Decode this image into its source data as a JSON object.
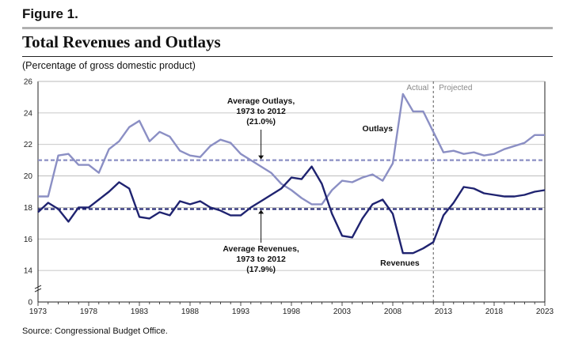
{
  "figure_label": "Figure 1.",
  "title": "Total Revenues and Outlays",
  "subtitle": "(Percentage of gross domestic product)",
  "source": "Source:     Congressional Budget Office.",
  "colors": {
    "outlays": "#8b8fc4",
    "revenues": "#1f2370",
    "axis": "#222222",
    "grid": "#b4b4b4"
  },
  "chart_data": {
    "type": "line",
    "xlim": [
      1973,
      2023
    ],
    "ylim": [
      0,
      26
    ],
    "grid": true,
    "x_ticks": [
      "1973",
      "1978",
      "1983",
      "1988",
      "1993",
      "1998",
      "2003",
      "2008",
      "2013",
      "2018",
      "2023"
    ],
    "y_ticks": [
      "0",
      "14",
      "16",
      "18",
      "20",
      "22",
      "24",
      "26"
    ],
    "x": [
      1973,
      1974,
      1975,
      1976,
      1977,
      1978,
      1979,
      1980,
      1981,
      1982,
      1983,
      1984,
      1985,
      1986,
      1987,
      1988,
      1989,
      1990,
      1991,
      1992,
      1993,
      1994,
      1995,
      1996,
      1997,
      1998,
      1999,
      2000,
      2001,
      2002,
      2003,
      2004,
      2005,
      2006,
      2007,
      2008,
      2009,
      2010,
      2011,
      2012,
      2013,
      2014,
      2015,
      2016,
      2017,
      2018,
      2019,
      2020,
      2021,
      2022,
      2023
    ],
    "series": [
      {
        "name": "Outlays",
        "values": [
          18.7,
          18.7,
          21.3,
          21.4,
          20.7,
          20.7,
          20.2,
          21.7,
          22.2,
          23.1,
          23.5,
          22.2,
          22.8,
          22.5,
          21.6,
          21.3,
          21.2,
          21.9,
          22.3,
          22.1,
          21.4,
          21.0,
          20.6,
          20.2,
          19.5,
          19.1,
          18.6,
          18.2,
          18.2,
          19.1,
          19.7,
          19.6,
          19.9,
          20.1,
          19.7,
          20.8,
          25.2,
          24.1,
          24.1,
          22.8,
          21.5,
          21.6,
          21.4,
          21.5,
          21.3,
          21.4,
          21.7,
          21.9,
          22.1,
          22.6,
          22.6
        ]
      },
      {
        "name": "Revenues",
        "values": [
          17.7,
          18.3,
          17.9,
          17.1,
          18.0,
          18.0,
          18.5,
          19.0,
          19.6,
          19.2,
          17.4,
          17.3,
          17.7,
          17.5,
          18.4,
          18.2,
          18.4,
          18.0,
          17.8,
          17.5,
          17.5,
          18.0,
          18.4,
          18.8,
          19.2,
          19.9,
          19.8,
          20.6,
          19.5,
          17.6,
          16.2,
          16.1,
          17.3,
          18.2,
          18.5,
          17.6,
          15.1,
          15.1,
          15.4,
          15.8,
          17.5,
          18.3,
          19.3,
          19.2,
          18.9,
          18.8,
          18.7,
          18.7,
          18.8,
          19.0,
          19.1
        ]
      }
    ],
    "reference_lines": [
      {
        "name": "Average Outlays",
        "value": 21.0
      },
      {
        "name": "Average Revenues",
        "value": 17.9
      }
    ],
    "divider_x": 2012,
    "annotations": {
      "actual": "Actual",
      "projected": "Projected",
      "outlays_label": "Outlays",
      "revenues_label": "Revenues",
      "avg_outlays": [
        "Average Outlays,",
        "1973 to 2012",
        "(21.0%)"
      ],
      "avg_revenues": [
        "Average Revenues,",
        "1973 to 2012",
        "(17.9%)"
      ]
    }
  }
}
